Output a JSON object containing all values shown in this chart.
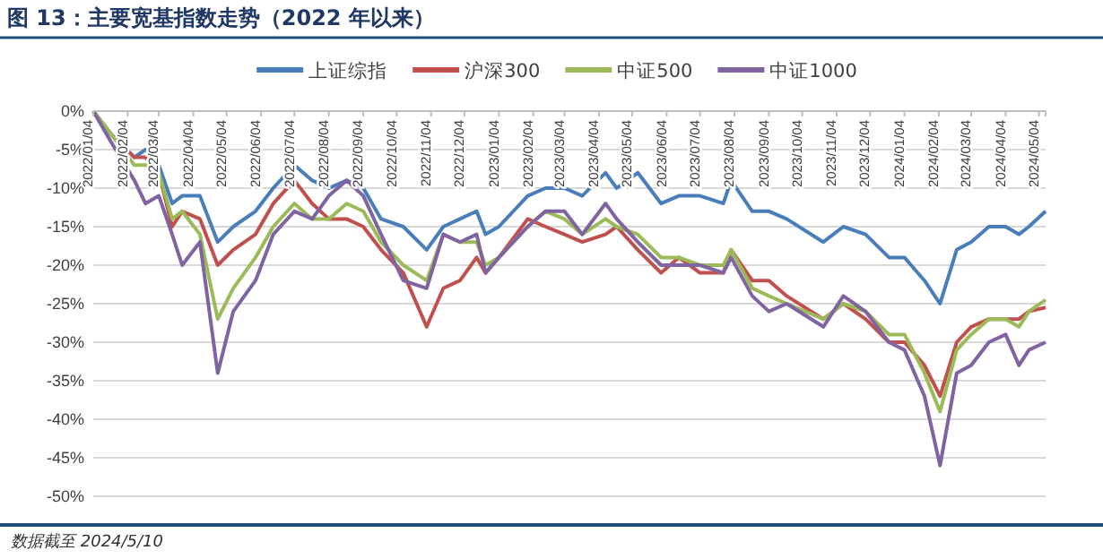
{
  "chart_data": {
    "type": "line",
    "title": "图 13：主要宽基指数走势（2022 年以来）",
    "annotations": [
      "数据截至 2024/5/10"
    ],
    "x": [
      "2022-01-04",
      "2022-01-20",
      "2022-02-10",
      "2022-02-20",
      "2022-03-04",
      "2022-03-16",
      "2022-03-25",
      "2022-04-10",
      "2022-04-26",
      "2022-05-10",
      "2022-05-30",
      "2022-06-15",
      "2022-07-04",
      "2022-07-20",
      "2022-08-04",
      "2022-08-20",
      "2022-09-04",
      "2022-09-20",
      "2022-10-10",
      "2022-10-31",
      "2022-11-15",
      "2022-11-30",
      "2022-12-15",
      "2022-12-23",
      "2023-01-04",
      "2023-01-30",
      "2023-02-15",
      "2023-03-04",
      "2023-03-20",
      "2023-04-10",
      "2023-04-20",
      "2023-05-09",
      "2023-05-30",
      "2023-06-15",
      "2023-07-04",
      "2023-07-25",
      "2023-08-01",
      "2023-08-20",
      "2023-09-04",
      "2023-09-20",
      "2023-10-23",
      "2023-11-10",
      "2023-11-30",
      "2023-12-21",
      "2024-01-04",
      "2024-01-22",
      "2024-02-05",
      "2024-02-20",
      "2024-03-04",
      "2024-03-20",
      "2024-04-04",
      "2024-04-16",
      "2024-04-25",
      "2024-05-10"
    ],
    "series": [
      {
        "name": "上证综指",
        "color": "#4a7ebb",
        "values": [
          0,
          -3,
          -6,
          -5,
          -7,
          -12,
          -11,
          -11,
          -17,
          -15,
          -13,
          -10,
          -7,
          -9,
          -10,
          -9,
          -10,
          -14,
          -15,
          -18,
          -15,
          -14,
          -13,
          -16,
          -15,
          -11,
          -10,
          -10,
          -11,
          -8,
          -10,
          -8,
          -12,
          -11,
          -11,
          -12,
          -9,
          -13,
          -13,
          -14,
          -17,
          -15,
          -16,
          -19,
          -19,
          -22,
          -25,
          -18,
          -17,
          -15,
          -15,
          -16,
          -15,
          -13
        ]
      },
      {
        "name": "沪深300",
        "color": "#c0504d",
        "values": [
          0,
          -3,
          -6,
          -6,
          -8,
          -15,
          -13,
          -14,
          -20,
          -18,
          -16,
          -12,
          -9,
          -12,
          -14,
          -14,
          -15,
          -18,
          -21,
          -28,
          -23,
          -22,
          -19,
          -21,
          -19,
          -14,
          -15,
          -16,
          -17,
          -16,
          -15,
          -18,
          -21,
          -19,
          -21,
          -21,
          -18,
          -22,
          -22,
          -24,
          -27,
          -25,
          -27,
          -30,
          -30,
          -33,
          -37,
          -30,
          -28,
          -27,
          -27,
          -27,
          -26,
          -25.5
        ]
      },
      {
        "name": "中证500",
        "color": "#9bbb59",
        "values": [
          0,
          -3,
          -7,
          -7,
          -8,
          -14,
          -13,
          -16,
          -27,
          -23,
          -19,
          -15,
          -12,
          -14,
          -14,
          -12,
          -13,
          -17,
          -20,
          -22,
          -16,
          -17,
          -17,
          -20,
          -19,
          -15,
          -13,
          -14,
          -16,
          -14,
          -15,
          -16,
          -19,
          -19,
          -20,
          -20,
          -18,
          -23,
          -24,
          -25,
          -27,
          -25,
          -26,
          -29,
          -29,
          -34,
          -39,
          -31,
          -29,
          -27,
          -27,
          -28,
          -26,
          -24.5
        ]
      },
      {
        "name": "中证1000",
        "color": "#8064a2",
        "values": [
          0,
          -4,
          -9,
          -12,
          -11,
          -16,
          -20,
          -17,
          -34,
          -26,
          -22,
          -16,
          -13,
          -14,
          -11,
          -9,
          -11,
          -16,
          -22,
          -23,
          -16,
          -17,
          -16,
          -21,
          -19,
          -15,
          -13,
          -13,
          -16,
          -12,
          -14,
          -17,
          -20,
          -20,
          -20,
          -21,
          -19,
          -24,
          -26,
          -25,
          -28,
          -24,
          -26,
          -30,
          -31,
          -37,
          -46,
          -34,
          -33,
          -30,
          -29,
          -33,
          -31,
          -30
        ]
      }
    ],
    "xlim": [
      "2022-01-04",
      "2024-05-10"
    ],
    "xticks": [
      {
        "value": "2022-01-04",
        "label": "2022/01/04"
      },
      {
        "value": "2022-02-04",
        "label": "2022/02/04"
      },
      {
        "value": "2022-03-04",
        "label": "2022/03/04"
      },
      {
        "value": "2022-04-04",
        "label": "2022/04/04"
      },
      {
        "value": "2022-05-04",
        "label": "2022/05/04"
      },
      {
        "value": "2022-06-04",
        "label": "2022/06/04"
      },
      {
        "value": "2022-07-04",
        "label": "2022/07/04"
      },
      {
        "value": "2022-08-04",
        "label": "2022/08/04"
      },
      {
        "value": "2022-09-04",
        "label": "2022/09/04"
      },
      {
        "value": "2022-10-04",
        "label": "2022/10/04"
      },
      {
        "value": "2022-11-04",
        "label": "2022/11/04"
      },
      {
        "value": "2022-12-04",
        "label": "2022/12/04"
      },
      {
        "value": "2023-01-04",
        "label": "2023/01/04"
      },
      {
        "value": "2023-02-04",
        "label": "2023/02/04"
      },
      {
        "value": "2023-03-04",
        "label": "2023/03/04"
      },
      {
        "value": "2023-04-04",
        "label": "2023/04/04"
      },
      {
        "value": "2023-05-04",
        "label": "2023/05/04"
      },
      {
        "value": "2023-06-04",
        "label": "2023/06/04"
      },
      {
        "value": "2023-07-04",
        "label": "2023/07/04"
      },
      {
        "value": "2023-08-04",
        "label": "2023/08/04"
      },
      {
        "value": "2023-09-04",
        "label": "2023/09/04"
      },
      {
        "value": "2023-10-04",
        "label": "2023/10/04"
      },
      {
        "value": "2023-11-04",
        "label": "2023/11/04"
      },
      {
        "value": "2023-12-04",
        "label": "2023/12/04"
      },
      {
        "value": "2024-01-04",
        "label": "2024/01/04"
      },
      {
        "value": "2024-02-04",
        "label": "2024/02/04"
      },
      {
        "value": "2024-03-04",
        "label": "2024/03/04"
      },
      {
        "value": "2024-04-04",
        "label": "2024/04/04"
      },
      {
        "value": "2024-05-04",
        "label": "2024/05/04"
      }
    ],
    "ylim": [
      -50,
      0
    ],
    "yticks": [
      {
        "value": 0,
        "label": "0%"
      },
      {
        "value": -5,
        "label": "-5%"
      },
      {
        "value": -10,
        "label": "-10%"
      },
      {
        "value": -15,
        "label": "-15%"
      },
      {
        "value": -20,
        "label": "-20%"
      },
      {
        "value": -25,
        "label": "-25%"
      },
      {
        "value": -30,
        "label": "-30%"
      },
      {
        "value": -35,
        "label": "-35%"
      },
      {
        "value": -40,
        "label": "-40%"
      },
      {
        "value": -45,
        "label": "-45%"
      },
      {
        "value": -50,
        "label": "-50%"
      }
    ],
    "grid": "y",
    "legend": "top",
    "marker": "none",
    "line_style": "solid"
  }
}
